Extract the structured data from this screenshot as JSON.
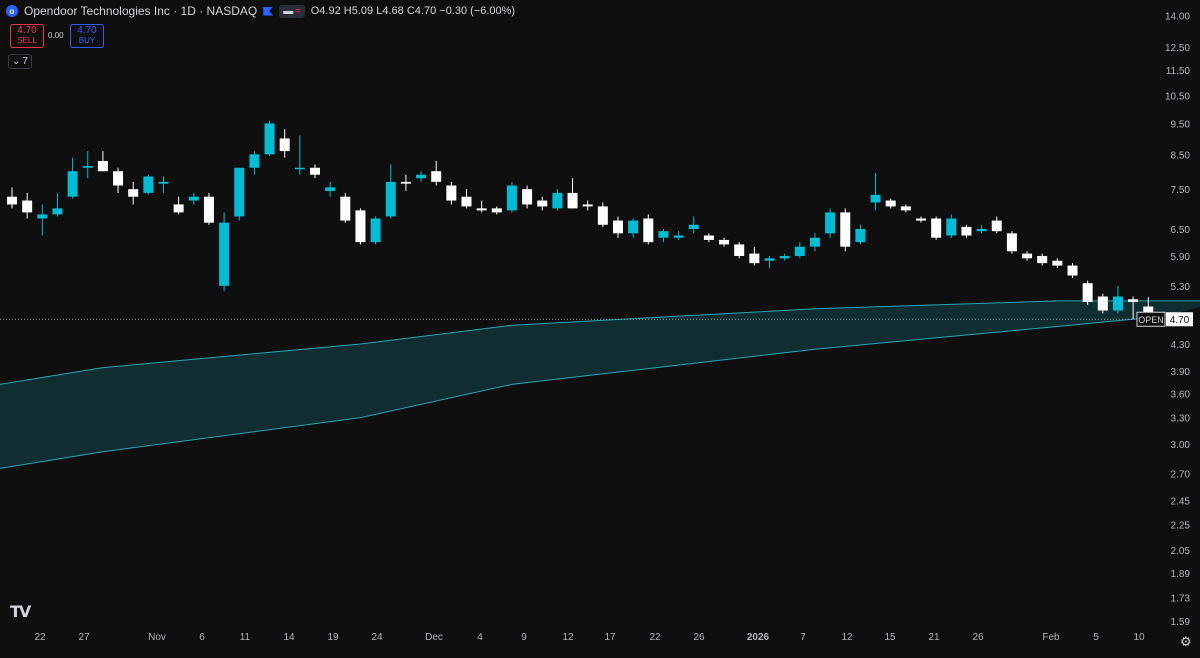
{
  "header": {
    "symbol_title": "Opendoor Technologies Inc · 1D · NASDAQ",
    "ohlc": {
      "o_label": "O",
      "o": "4.92",
      "h_label": "H",
      "h": "5.09",
      "l_label": "L",
      "l": "4.68",
      "c_label": "C",
      "c": "4.70",
      "change": "−0.30 (−6.00%)"
    }
  },
  "trade": {
    "sell_price": "4.70",
    "sell_label": "SELL",
    "spread": "0.00",
    "buy_price": "4.70",
    "buy_label": "BUY"
  },
  "indicators_count": "7",
  "price_tag": {
    "label": "OPEN",
    "value": "4.70"
  },
  "colors": {
    "up": "#00bcd4",
    "down": "#ffffff",
    "band": "#26a6b8",
    "bg": "#0f0f0f"
  },
  "chart_data": {
    "type": "candlestick",
    "y_scale": "log",
    "ylim": [
      1.55,
      14.8
    ],
    "y_ticks": [
      "14.00",
      "12.50",
      "11.50",
      "10.50",
      "9.50",
      "8.50",
      "7.50",
      "6.50",
      "5.90",
      "5.30",
      "4.70",
      "4.30",
      "3.90",
      "3.60",
      "3.30",
      "3.00",
      "2.70",
      "2.45",
      "2.25",
      "2.05",
      "1.89",
      "1.73",
      "1.59"
    ],
    "x_ticks": [
      "22",
      "27",
      "Nov",
      "6",
      "11",
      "14",
      "19",
      "24",
      "Dec",
      "4",
      "9",
      "12",
      "17",
      "22",
      "26",
      "2026",
      "7",
      "12",
      "15",
      "21",
      "26",
      "Feb",
      "5",
      "10"
    ],
    "candles": [
      {
        "o": 7.3,
        "h": 7.55,
        "l": 7.0,
        "c": 7.1
      },
      {
        "o": 7.2,
        "h": 7.4,
        "l": 6.75,
        "c": 6.9
      },
      {
        "o": 6.75,
        "h": 7.1,
        "l": 6.35,
        "c": 6.85
      },
      {
        "o": 6.85,
        "h": 7.4,
        "l": 6.8,
        "c": 7.0
      },
      {
        "o": 7.3,
        "h": 8.4,
        "l": 7.25,
        "c": 8.0
      },
      {
        "o": 8.1,
        "h": 8.6,
        "l": 7.8,
        "c": 8.15
      },
      {
        "o": 8.3,
        "h": 8.6,
        "l": 8.0,
        "c": 8.0
      },
      {
        "o": 8.0,
        "h": 8.1,
        "l": 7.4,
        "c": 7.6
      },
      {
        "o": 7.5,
        "h": 7.7,
        "l": 7.1,
        "c": 7.3
      },
      {
        "o": 7.4,
        "h": 7.9,
        "l": 7.35,
        "c": 7.85
      },
      {
        "o": 7.65,
        "h": 7.85,
        "l": 7.4,
        "c": 7.7
      },
      {
        "o": 7.1,
        "h": 7.3,
        "l": 6.85,
        "c": 6.9
      },
      {
        "o": 7.2,
        "h": 7.4,
        "l": 7.1,
        "c": 7.3
      },
      {
        "o": 7.3,
        "h": 7.4,
        "l": 6.6,
        "c": 6.65
      },
      {
        "o": 5.3,
        "h": 6.9,
        "l": 5.2,
        "c": 6.65
      },
      {
        "o": 6.8,
        "h": 8.1,
        "l": 6.7,
        "c": 8.1
      },
      {
        "o": 8.1,
        "h": 8.6,
        "l": 7.9,
        "c": 8.5
      },
      {
        "o": 8.5,
        "h": 9.6,
        "l": 8.45,
        "c": 9.5
      },
      {
        "o": 9.0,
        "h": 9.3,
        "l": 8.4,
        "c": 8.6
      },
      {
        "o": 8.1,
        "h": 9.1,
        "l": 7.9,
        "c": 8.1
      },
      {
        "o": 8.1,
        "h": 8.2,
        "l": 7.8,
        "c": 7.9
      },
      {
        "o": 7.45,
        "h": 7.7,
        "l": 7.3,
        "c": 7.55
      },
      {
        "o": 7.3,
        "h": 7.4,
        "l": 6.65,
        "c": 6.7
      },
      {
        "o": 6.95,
        "h": 7.0,
        "l": 6.15,
        "c": 6.2
      },
      {
        "o": 6.2,
        "h": 6.8,
        "l": 6.15,
        "c": 6.75
      },
      {
        "o": 6.8,
        "h": 8.2,
        "l": 6.75,
        "c": 7.7
      },
      {
        "o": 7.7,
        "h": 7.9,
        "l": 7.45,
        "c": 7.65
      },
      {
        "o": 7.8,
        "h": 8.0,
        "l": 7.7,
        "c": 7.9
      },
      {
        "o": 8.0,
        "h": 8.3,
        "l": 7.6,
        "c": 7.7
      },
      {
        "o": 7.6,
        "h": 7.7,
        "l": 7.1,
        "c": 7.2
      },
      {
        "o": 7.3,
        "h": 7.5,
        "l": 7.0,
        "c": 7.05
      },
      {
        "o": 7.0,
        "h": 7.2,
        "l": 6.9,
        "c": 6.95
      },
      {
        "o": 7.0,
        "h": 7.05,
        "l": 6.85,
        "c": 6.9
      },
      {
        "o": 6.95,
        "h": 7.7,
        "l": 6.9,
        "c": 7.6
      },
      {
        "o": 7.5,
        "h": 7.6,
        "l": 7.0,
        "c": 7.1
      },
      {
        "o": 7.2,
        "h": 7.3,
        "l": 6.95,
        "c": 7.05
      },
      {
        "o": 7.0,
        "h": 7.5,
        "l": 6.95,
        "c": 7.4
      },
      {
        "o": 7.4,
        "h": 7.8,
        "l": 7.0,
        "c": 7.0
      },
      {
        "o": 7.1,
        "h": 7.2,
        "l": 6.95,
        "c": 7.05
      },
      {
        "o": 7.05,
        "h": 7.15,
        "l": 6.55,
        "c": 6.6
      },
      {
        "o": 6.7,
        "h": 6.8,
        "l": 6.3,
        "c": 6.4
      },
      {
        "o": 6.4,
        "h": 6.75,
        "l": 6.3,
        "c": 6.7
      },
      {
        "o": 6.75,
        "h": 6.85,
        "l": 6.15,
        "c": 6.2
      },
      {
        "o": 6.3,
        "h": 6.5,
        "l": 6.2,
        "c": 6.45
      },
      {
        "o": 6.3,
        "h": 6.45,
        "l": 6.25,
        "c": 6.35
      },
      {
        "o": 6.5,
        "h": 6.8,
        "l": 6.4,
        "c": 6.6
      },
      {
        "o": 6.35,
        "h": 6.4,
        "l": 6.2,
        "c": 6.25
      },
      {
        "o": 6.25,
        "h": 6.3,
        "l": 6.1,
        "c": 6.15
      },
      {
        "o": 6.15,
        "h": 6.2,
        "l": 5.85,
        "c": 5.9
      },
      {
        "o": 5.95,
        "h": 6.1,
        "l": 5.7,
        "c": 5.75
      },
      {
        "o": 5.8,
        "h": 5.9,
        "l": 5.65,
        "c": 5.85
      },
      {
        "o": 5.85,
        "h": 5.95,
        "l": 5.8,
        "c": 5.9
      },
      {
        "o": 5.9,
        "h": 6.2,
        "l": 5.85,
        "c": 6.1
      },
      {
        "o": 6.1,
        "h": 6.4,
        "l": 6.0,
        "c": 6.3
      },
      {
        "o": 6.4,
        "h": 7.0,
        "l": 6.3,
        "c": 6.9
      },
      {
        "o": 6.9,
        "h": 7.0,
        "l": 6.0,
        "c": 6.1
      },
      {
        "o": 6.2,
        "h": 6.6,
        "l": 6.15,
        "c": 6.5
      },
      {
        "o": 7.15,
        "h": 7.95,
        "l": 6.95,
        "c": 7.35
      },
      {
        "o": 7.2,
        "h": 7.25,
        "l": 7.0,
        "c": 7.05
      },
      {
        "o": 7.05,
        "h": 7.1,
        "l": 6.9,
        "c": 6.95
      },
      {
        "o": 6.75,
        "h": 6.8,
        "l": 6.65,
        "c": 6.7
      },
      {
        "o": 6.75,
        "h": 6.8,
        "l": 6.25,
        "c": 6.3
      },
      {
        "o": 6.35,
        "h": 6.85,
        "l": 6.3,
        "c": 6.75
      },
      {
        "o": 6.55,
        "h": 6.6,
        "l": 6.3,
        "c": 6.35
      },
      {
        "o": 6.45,
        "h": 6.6,
        "l": 6.4,
        "c": 6.5
      },
      {
        "o": 6.7,
        "h": 6.8,
        "l": 6.4,
        "c": 6.45
      },
      {
        "o": 6.4,
        "h": 6.45,
        "l": 5.95,
        "c": 6.0
      },
      {
        "o": 5.95,
        "h": 6.0,
        "l": 5.8,
        "c": 5.85
      },
      {
        "o": 5.9,
        "h": 5.95,
        "l": 5.7,
        "c": 5.75
      },
      {
        "o": 5.8,
        "h": 5.85,
        "l": 5.65,
        "c": 5.7
      },
      {
        "o": 5.7,
        "h": 5.75,
        "l": 5.45,
        "c": 5.5
      },
      {
        "o": 5.35,
        "h": 5.4,
        "l": 4.95,
        "c": 5.0
      },
      {
        "o": 5.1,
        "h": 5.15,
        "l": 4.8,
        "c": 4.85
      },
      {
        "o": 4.85,
        "h": 5.3,
        "l": 4.8,
        "c": 5.1
      },
      {
        "o": 5.05,
        "h": 5.1,
        "l": 4.7,
        "c": 5.0
      },
      {
        "o": 4.92,
        "h": 5.09,
        "l": 4.68,
        "c": 4.7
      }
    ],
    "band_upper": [
      {
        "t": 0,
        "v": 3.72
      },
      {
        "t": 6,
        "v": 3.95
      },
      {
        "t": 23,
        "v": 4.3
      },
      {
        "t": 33,
        "v": 4.6
      },
      {
        "t": 53,
        "v": 4.88
      },
      {
        "t": 69,
        "v": 5.02
      },
      {
        "t": 80,
        "v": 5.02
      }
    ],
    "band_lower": [
      {
        "t": 0,
        "v": 2.75
      },
      {
        "t": 6,
        "v": 2.92
      },
      {
        "t": 23,
        "v": 3.3
      },
      {
        "t": 33,
        "v": 3.72
      },
      {
        "t": 53,
        "v": 4.22
      },
      {
        "t": 69,
        "v": 4.58
      },
      {
        "t": 76,
        "v": 4.75
      }
    ]
  }
}
